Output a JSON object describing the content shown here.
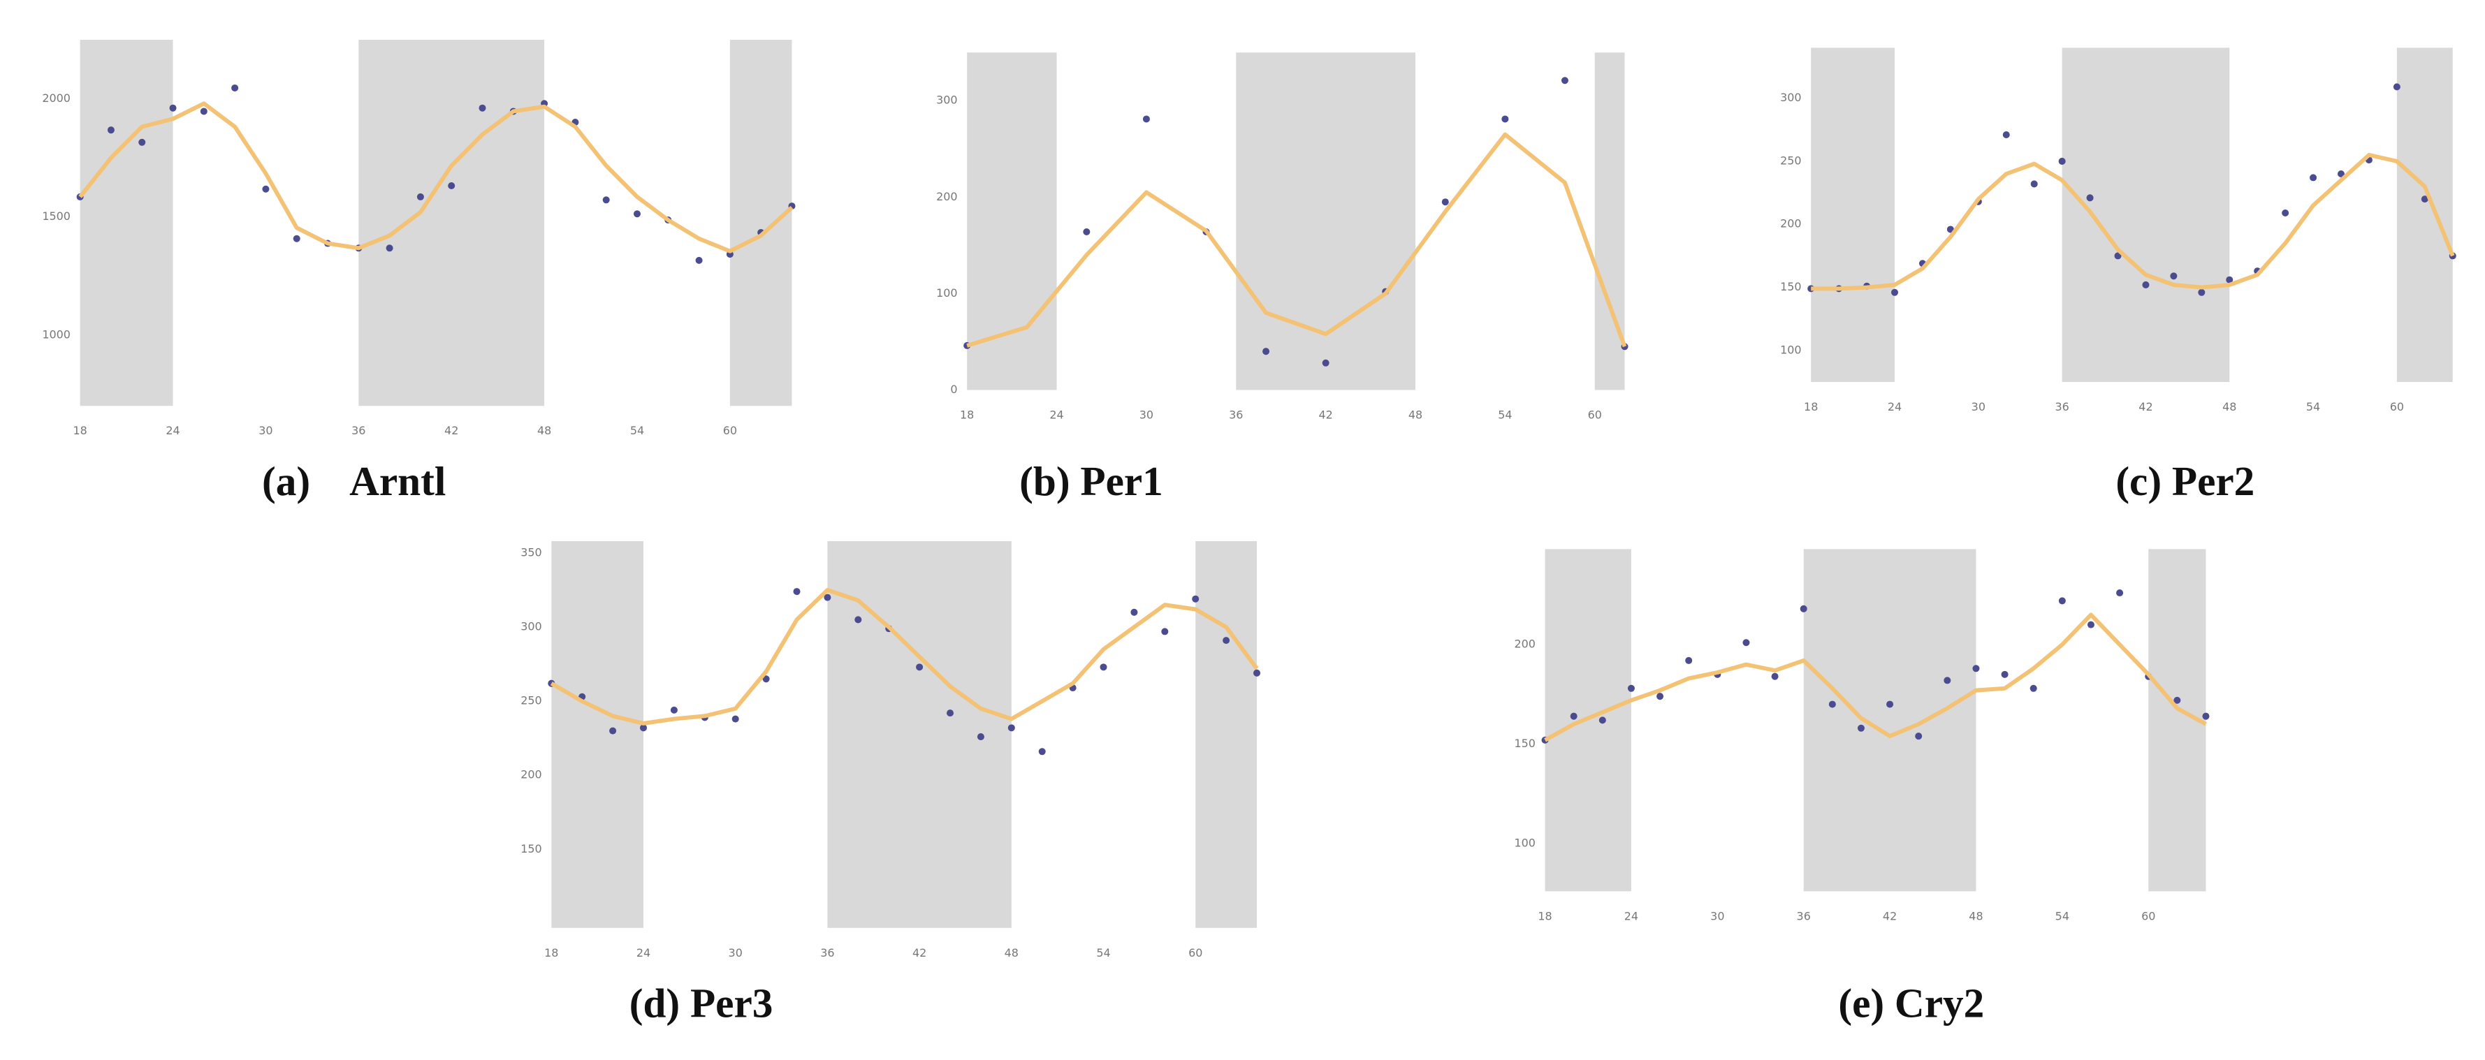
{
  "chart_data": [
    {
      "type": "line",
      "title": "(a)    Arntl",
      "x": [
        18,
        20,
        22,
        24,
        26,
        28,
        30,
        32,
        34,
        36,
        38,
        40,
        42,
        44,
        46,
        48,
        50,
        52,
        54,
        56,
        58,
        60,
        62,
        64
      ],
      "series": [
        {
          "mark": "scatter",
          "color": "#4b4b8f",
          "values": [
            1585,
            1868,
            1816,
            1961,
            1947,
            2046,
            1618,
            1408,
            1388,
            1368,
            1368,
            1585,
            1632,
            1961,
            1947,
            1980,
            1901,
            1572,
            1513,
            1487,
            1316,
            1342,
            1434,
            1546
          ]
        },
        {
          "mark": "line",
          "color": "#f3c274",
          "values": [
            1585,
            1750,
            1882,
            1915,
            1980,
            1882,
            1684,
            1454,
            1388,
            1368,
            1421,
            1520,
            1717,
            1849,
            1947,
            1967,
            1882,
            1717,
            1585,
            1487,
            1408,
            1355,
            1421,
            1540
          ]
        }
      ],
      "shaded": [
        [
          18,
          24
        ],
        [
          36,
          48
        ],
        [
          60,
          64
        ]
      ],
      "shade_color": "#d9d9d9",
      "xlim": [
        18,
        64
      ],
      "xticks": [
        18,
        24,
        30,
        36,
        42,
        48,
        54,
        60
      ],
      "ylim": [
        700,
        2250
      ],
      "yticks": [
        1000,
        1500,
        2000
      ]
    },
    {
      "type": "line",
      "title": "(b) Per1",
      "x": [
        18,
        22,
        26,
        30,
        34,
        38,
        42,
        46,
        50,
        54,
        58,
        62
      ],
      "series": [
        {
          "mark": "scatter",
          "color": "#4b4b8f",
          "values": [
            46,
            null,
            164,
            281,
            164,
            40,
            28,
            102,
            195,
            281,
            321,
            45
          ]
        },
        {
          "mark": "line",
          "color": "#f3c274",
          "values": [
            46,
            65,
            140,
            205,
            165,
            80,
            58,
            100,
            185,
            265,
            215,
            45
          ]
        }
      ],
      "shaded": [
        [
          18,
          24
        ],
        [
          36,
          48
        ],
        [
          60,
          62
        ]
      ],
      "shade_color": "#d9d9d9",
      "xlim": [
        18,
        62
      ],
      "xticks": [
        18,
        24,
        30,
        36,
        42,
        48,
        54,
        60
      ],
      "ylim": [
        0,
        350
      ],
      "yticks": [
        0,
        100,
        200,
        300
      ]
    },
    {
      "type": "line",
      "title": "(c) Per2",
      "x": [
        18,
        20,
        22,
        24,
        26,
        28,
        30,
        32,
        34,
        36,
        38,
        40,
        42,
        44,
        46,
        48,
        50,
        52,
        54,
        56,
        58,
        60,
        62,
        64
      ],
      "series": [
        {
          "mark": "scatter",
          "color": "#4b4b8f",
          "values": [
            149,
            149,
            151,
            146,
            169,
            196,
            218,
            271,
            232,
            250,
            221,
            175,
            152,
            159,
            146,
            156,
            163,
            209,
            237,
            240,
            251,
            309,
            220,
            175
          ]
        },
        {
          "mark": "line",
          "color": "#f3c274",
          "values": [
            149,
            149,
            150,
            152,
            165,
            190,
            220,
            240,
            248,
            235,
            210,
            180,
            160,
            152,
            150,
            152,
            160,
            185,
            215,
            235,
            255,
            250,
            230,
            175
          ]
        }
      ],
      "shaded": [
        [
          18,
          24
        ],
        [
          36,
          48
        ],
        [
          60,
          64
        ]
      ],
      "shade_color": "#d9d9d9",
      "xlim": [
        18,
        64
      ],
      "xticks": [
        18,
        24,
        30,
        36,
        42,
        48,
        54,
        60
      ],
      "ylim": [
        75,
        340
      ],
      "yticks": [
        100,
        150,
        200,
        250,
        300
      ]
    },
    {
      "type": "line",
      "title": "(d) Per3",
      "x": [
        18,
        20,
        22,
        24,
        26,
        28,
        30,
        32,
        34,
        36,
        38,
        40,
        42,
        44,
        46,
        48,
        50,
        52,
        54,
        56,
        58,
        60,
        62,
        64
      ],
      "series": [
        {
          "mark": "scatter",
          "color": "#4b4b8f",
          "values": [
            262,
            253,
            230,
            232,
            244,
            239,
            238,
            265,
            324,
            320,
            305,
            299,
            273,
            242,
            226,
            232,
            216,
            259,
            273,
            310,
            297,
            319,
            291,
            269
          ]
        },
        {
          "mark": "line",
          "color": "#f3c274",
          "values": [
            262,
            250,
            240,
            235,
            238,
            240,
            245,
            270,
            305,
            325,
            318,
            300,
            280,
            260,
            245,
            238,
            250,
            262,
            285,
            300,
            315,
            312,
            300,
            272
          ]
        }
      ],
      "shaded": [
        [
          18,
          24
        ],
        [
          36,
          48
        ],
        [
          60,
          64
        ]
      ],
      "shade_color": "#d9d9d9",
      "xlim": [
        18,
        64
      ],
      "xticks": [
        18,
        24,
        30,
        36,
        42,
        48,
        54,
        60
      ],
      "ylim": [
        97,
        358
      ],
      "yticks": [
        150,
        200,
        250,
        300,
        350
      ]
    },
    {
      "type": "line",
      "title": "(e) Cry2",
      "x": [
        18,
        20,
        22,
        24,
        26,
        28,
        30,
        32,
        34,
        36,
        38,
        40,
        42,
        44,
        46,
        48,
        50,
        52,
        54,
        56,
        58,
        60,
        62,
        64
      ],
      "series": [
        {
          "mark": "scatter",
          "color": "#4b4b8f",
          "values": [
            152,
            164,
            162,
            178,
            174,
            192,
            185,
            201,
            184,
            218,
            170,
            158,
            170,
            154,
            182,
            188,
            185,
            178,
            222,
            210,
            226,
            184,
            172,
            164
          ]
        },
        {
          "mark": "line",
          "color": "#f3c274",
          "values": [
            152,
            160,
            166,
            172,
            177,
            183,
            186,
            190,
            187,
            192,
            178,
            163,
            154,
            160,
            168,
            177,
            178,
            188,
            200,
            215,
            200,
            185,
            168,
            160
          ]
        }
      ],
      "shaded": [
        [
          18,
          24
        ],
        [
          36,
          48
        ],
        [
          60,
          64
        ]
      ],
      "shade_color": "#d9d9d9",
      "xlim": [
        18,
        64
      ],
      "xticks": [
        18,
        24,
        30,
        36,
        42,
        48,
        54,
        60
      ],
      "ylim": [
        76,
        248
      ],
      "yticks": [
        100,
        150,
        200
      ]
    }
  ]
}
